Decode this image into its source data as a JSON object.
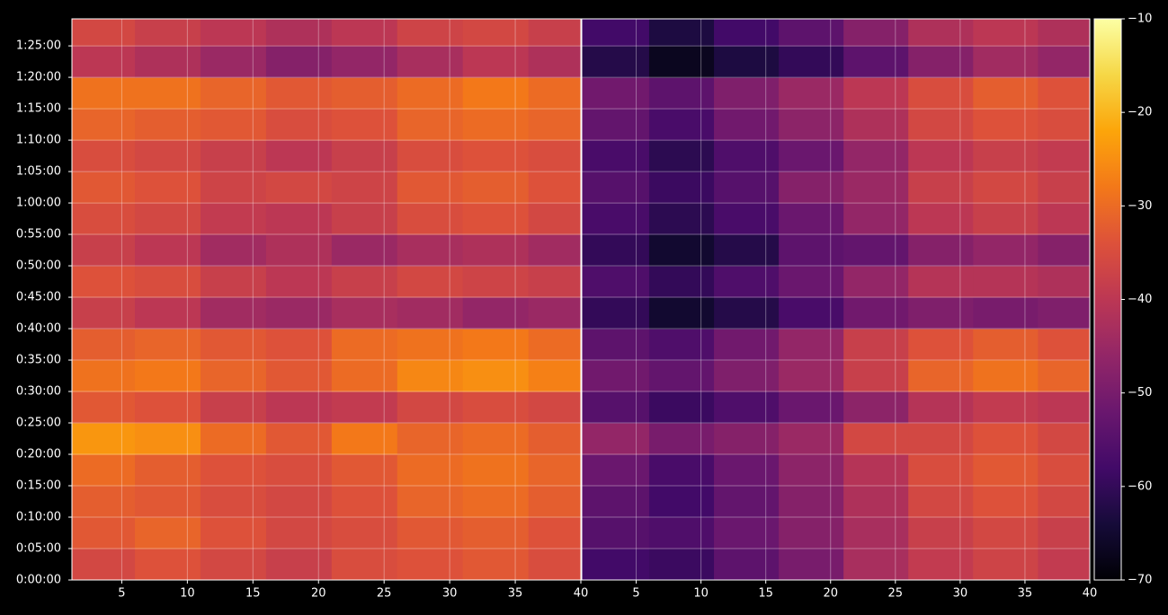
{
  "chart_data": [
    {
      "type": "heatmap",
      "xlim": [
        1.2,
        40
      ],
      "xticks": [
        5,
        10,
        15,
        20,
        25,
        30,
        35,
        40
      ],
      "ylim": [
        0,
        89.3
      ],
      "yticks": [
        {
          "value": 0,
          "label": "0:00:00"
        },
        {
          "value": 5,
          "label": "0:05:00"
        },
        {
          "value": 10,
          "label": "0:10:00"
        },
        {
          "value": 15,
          "label": "0:15:00"
        },
        {
          "value": 20,
          "label": "0:20:00"
        },
        {
          "value": 25,
          "label": "0:25:00"
        },
        {
          "value": 30,
          "label": "0:30:00"
        },
        {
          "value": 35,
          "label": "0:35:00"
        },
        {
          "value": 40,
          "label": "0:40:00"
        },
        {
          "value": 45,
          "label": "0:45:00"
        },
        {
          "value": 50,
          "label": "0:50:00"
        },
        {
          "value": 55,
          "label": "0:55:00"
        },
        {
          "value": 60,
          "label": "1:00:00"
        },
        {
          "value": 65,
          "label": "1:05:00"
        },
        {
          "value": 70,
          "label": "1:10:00"
        },
        {
          "value": 75,
          "label": "1:15:00"
        },
        {
          "value": 80,
          "label": "1:20:00"
        },
        {
          "value": 85,
          "label": "1:25:00"
        }
      ],
      "grid": true,
      "x_edges": [
        1.2,
        6,
        11,
        16,
        21,
        26,
        31,
        36,
        40
      ],
      "y_edges": [
        0,
        5,
        10,
        15,
        20,
        25,
        30,
        35,
        40,
        45,
        50,
        55,
        60,
        65,
        70,
        75,
        80,
        85,
        89.3
      ],
      "z": [
        [
          -36,
          -34,
          -36,
          -38,
          -35,
          -34,
          -33,
          -35
        ],
        [
          -33,
          -31,
          -34,
          -36,
          -35,
          -33,
          -32,
          -34
        ],
        [
          -32,
          -33,
          -35,
          -36,
          -34,
          -31,
          -30,
          -32
        ],
        [
          -30,
          -32,
          -34,
          -35,
          -33,
          -30,
          -29,
          -31
        ],
        [
          -24,
          -25,
          -30,
          -33,
          -28,
          -31,
          -30,
          -32
        ],
        [
          -33,
          -34,
          -38,
          -40,
          -39,
          -36,
          -35,
          -36
        ],
        [
          -29,
          -28,
          -31,
          -33,
          -30,
          -26,
          -25,
          -27
        ],
        [
          -32,
          -31,
          -33,
          -34,
          -30,
          -29,
          -28,
          -30
        ],
        [
          -38,
          -40,
          -44,
          -45,
          -43,
          -44,
          -46,
          -45
        ],
        [
          -34,
          -35,
          -38,
          -40,
          -38,
          -36,
          -37,
          -38
        ],
        [
          -38,
          -40,
          -44,
          -42,
          -45,
          -43,
          -42,
          -44
        ],
        [
          -35,
          -36,
          -39,
          -40,
          -38,
          -35,
          -34,
          -36
        ],
        [
          -33,
          -34,
          -37,
          -36,
          -37,
          -33,
          -32,
          -34
        ],
        [
          -35,
          -36,
          -38,
          -40,
          -38,
          -35,
          -34,
          -35
        ],
        [
          -31,
          -32,
          -33,
          -35,
          -34,
          -31,
          -30,
          -31
        ],
        [
          -29,
          -29,
          -31,
          -33,
          -32,
          -30,
          -28,
          -30
        ],
        [
          -40,
          -42,
          -45,
          -48,
          -46,
          -43,
          -40,
          -42
        ],
        [
          -36,
          -38,
          -40,
          -42,
          -40,
          -37,
          -36,
          -38
        ]
      ]
    },
    {
      "type": "heatmap",
      "xlim": [
        0.8,
        40
      ],
      "xticks": [
        5,
        10,
        15,
        20,
        25,
        30,
        35,
        40
      ],
      "ylim": [
        0,
        89.3
      ],
      "sharey": true,
      "grid": true,
      "x_edges": [
        0.8,
        6,
        11,
        16,
        21,
        26,
        31,
        36,
        40
      ],
      "y_edges": [
        0,
        5,
        10,
        15,
        20,
        25,
        30,
        35,
        40,
        45,
        50,
        55,
        60,
        65,
        70,
        75,
        80,
        85,
        89.3
      ],
      "z": [
        [
          -58,
          -59,
          -54,
          -50,
          -43,
          -39,
          -37,
          -39
        ],
        [
          -55,
          -56,
          -52,
          -48,
          -43,
          -38,
          -36,
          -38
        ],
        [
          -54,
          -58,
          -53,
          -48,
          -42,
          -36,
          -34,
          -36
        ],
        [
          -52,
          -57,
          -52,
          -47,
          -41,
          -35,
          -33,
          -35
        ],
        [
          -46,
          -50,
          -48,
          -45,
          -36,
          -36,
          -34,
          -36
        ],
        [
          -55,
          -59,
          -56,
          -52,
          -47,
          -41,
          -39,
          -40
        ],
        [
          -51,
          -53,
          -49,
          -45,
          -38,
          -31,
          -29,
          -31
        ],
        [
          -54,
          -56,
          -51,
          -46,
          -38,
          -34,
          -32,
          -34
        ],
        [
          -60,
          -65,
          -62,
          -57,
          -51,
          -49,
          -50,
          -49
        ],
        [
          -56,
          -60,
          -56,
          -52,
          -46,
          -41,
          -41,
          -42
        ],
        [
          -60,
          -65,
          -62,
          -54,
          -53,
          -48,
          -46,
          -48
        ],
        [
          -57,
          -61,
          -57,
          -52,
          -46,
          -40,
          -38,
          -40
        ],
        [
          -55,
          -59,
          -55,
          -48,
          -45,
          -38,
          -36,
          -38
        ],
        [
          -57,
          -61,
          -56,
          -52,
          -46,
          -40,
          -38,
          -39
        ],
        [
          -53,
          -57,
          -51,
          -47,
          -42,
          -36,
          -34,
          -35
        ],
        [
          -51,
          -54,
          -49,
          -45,
          -40,
          -35,
          -32,
          -34
        ],
        [
          -62,
          -67,
          -63,
          -60,
          -54,
          -48,
          -44,
          -46
        ],
        [
          -58,
          -63,
          -58,
          -54,
          -48,
          -42,
          -40,
          -42
        ]
      ]
    },
    {
      "type": "colorbar",
      "colormap": "inferno",
      "lim": [
        -70,
        -10
      ],
      "ticks": [
        {
          "value": -10,
          "label": "−10"
        },
        {
          "value": -20,
          "label": "−20"
        },
        {
          "value": -30,
          "label": "−30"
        },
        {
          "value": -40,
          "label": "−40"
        },
        {
          "value": -50,
          "label": "−50"
        },
        {
          "value": -60,
          "label": "−60"
        },
        {
          "value": -70,
          "label": "−70"
        }
      ]
    }
  ]
}
